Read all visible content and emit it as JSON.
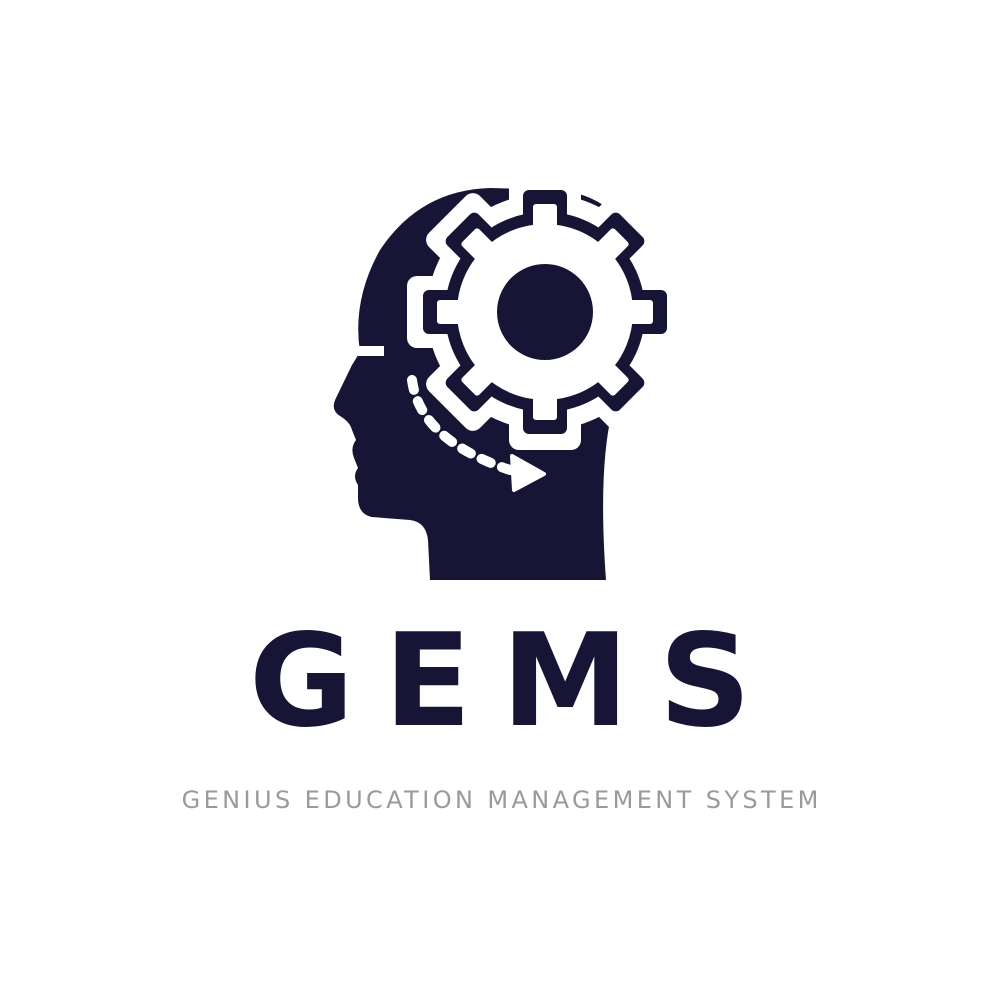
{
  "logo": {
    "icon": "head-with-gear-icon",
    "brand": "GEMS",
    "tagline": "GENIUS EDUCATION MANAGEMENT SYSTEM"
  },
  "colors": {
    "primary": "#161535",
    "tagline": "#9a9a9a",
    "background": "#ffffff"
  }
}
